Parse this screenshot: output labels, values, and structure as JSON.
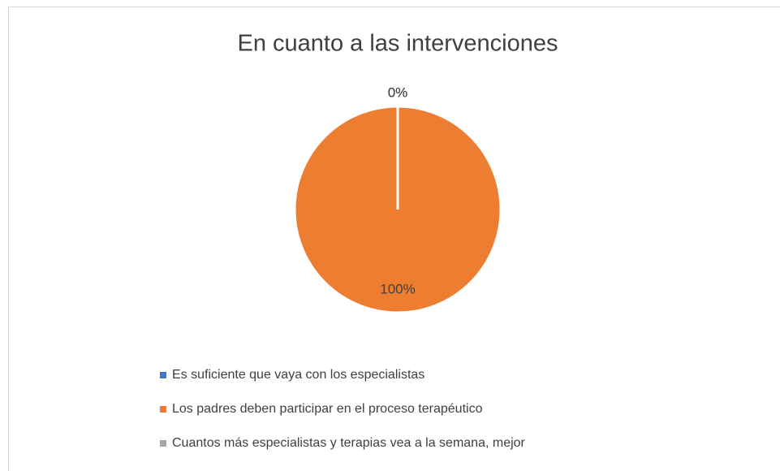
{
  "chart_data": {
    "type": "pie",
    "title": "En cuanto a las intervenciones",
    "categories": [
      "Es suficiente que vaya con los especialistas",
      "Los padres deben participar en el proceso terapéutico",
      "Cuantos más especialistas y terapias vea a la semana, mejor"
    ],
    "values": [
      0,
      100,
      0
    ],
    "value_labels": [
      "0%",
      "100%",
      "0%"
    ],
    "colors": [
      "#4472c4",
      "#ed7d31",
      "#a5a5a5"
    ],
    "legend": "bottom"
  }
}
